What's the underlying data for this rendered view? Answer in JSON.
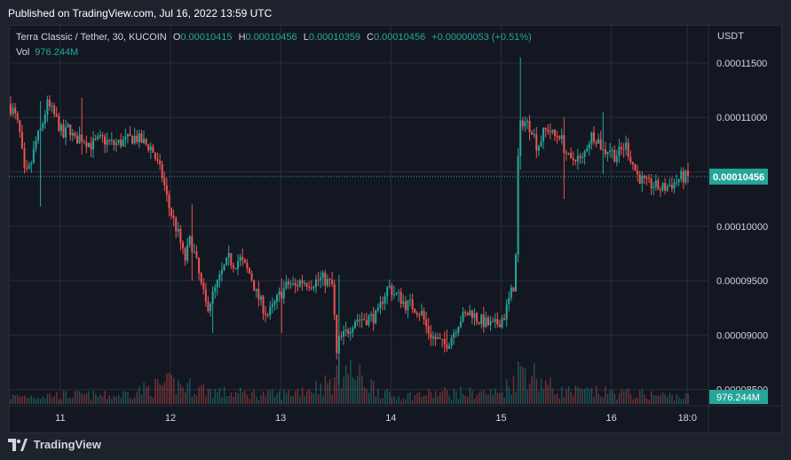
{
  "header": {
    "published": "Published on TradingView.com, Jul 16, 2022 13:59 UTC"
  },
  "legend": {
    "symbol": "Terra Classic / Tether, 30, KUCOIN",
    "o_label": "O",
    "o_value": "0.00010415",
    "h_label": "H",
    "h_value": "0.00010456",
    "l_label": "L",
    "l_value": "0.00010359",
    "c_label": "C",
    "c_value": "0.00010456",
    "change": "+0.00000053 (+0.51%)",
    "vol_label": "Vol",
    "vol_value": "976.244M"
  },
  "footer": {
    "brand": "TradingView"
  },
  "colors": {
    "up": "#26a69a",
    "down": "#ef5350",
    "background": "#131722",
    "grid": "#2a2e39",
    "text": "#d1d4dc"
  },
  "chart_data": {
    "type": "candlestick",
    "symbol": "Terra Classic / Tether",
    "interval": "30",
    "exchange": "KUCOIN",
    "currency": "USDT",
    "ylim": [
      8.35e-05,
      0.0001185
    ],
    "y_ticks": [
      "0.00011500",
      "0.00011000",
      "0.00010500",
      "0.00010000",
      "0.00009500",
      "0.00009000",
      "0.00008500"
    ],
    "x_ticks": [
      "11",
      "12",
      "13",
      "14",
      "15",
      "16",
      "18:0"
    ],
    "x_range_days": [
      10.55,
      16.72
    ],
    "last_price": "0.00010456",
    "last_volume": "976.244M",
    "price_path": [
      [
        10.55,
        0.0001112
      ],
      [
        10.6,
        0.0001105
      ],
      [
        10.65,
        0.0001088
      ],
      [
        10.7,
        0.0001045
      ],
      [
        10.75,
        0.0001055
      ],
      [
        10.8,
        0.0001078
      ],
      [
        10.85,
        0.000109
      ],
      [
        10.9,
        0.0001112
      ],
      [
        10.95,
        0.0001105
      ],
      [
        11.0,
        0.0001095
      ],
      [
        11.05,
        0.0001082
      ],
      [
        11.1,
        0.0001092
      ],
      [
        11.15,
        0.0001078
      ],
      [
        11.2,
        0.0001083
      ],
      [
        11.3,
        0.0001075
      ],
      [
        11.4,
        0.000108
      ],
      [
        11.5,
        0.0001075
      ],
      [
        11.6,
        0.0001078
      ],
      [
        11.7,
        0.0001082
      ],
      [
        11.8,
        0.0001075
      ],
      [
        11.85,
        0.0001072
      ],
      [
        11.9,
        0.0001058
      ],
      [
        11.95,
        0.0001045
      ],
      [
        12.0,
        0.000102
      ],
      [
        12.05,
        0.0001005
      ],
      [
        12.1,
        9.9e-05
      ],
      [
        12.15,
        9.68e-05
      ],
      [
        12.2,
        9.88e-05
      ],
      [
        12.25,
        9.7e-05
      ],
      [
        12.3,
        9.45e-05
      ],
      [
        12.35,
        9.25e-05
      ],
      [
        12.4,
        9.35e-05
      ],
      [
        12.45,
        9.48e-05
      ],
      [
        12.5,
        9.6e-05
      ],
      [
        12.55,
        9.7e-05
      ],
      [
        12.6,
        9.65e-05
      ],
      [
        12.65,
        9.7e-05
      ],
      [
        12.7,
        9.62e-05
      ],
      [
        12.75,
        9.55e-05
      ],
      [
        12.8,
        9.38e-05
      ],
      [
        12.85,
        9.28e-05
      ],
      [
        12.9,
        9.18e-05
      ],
      [
        12.95,
        9.25e-05
      ],
      [
        13.0,
        9.35e-05
      ],
      [
        13.05,
        9.42e-05
      ],
      [
        13.1,
        9.48e-05
      ],
      [
        13.15,
        9.44e-05
      ],
      [
        13.2,
        9.5e-05
      ],
      [
        13.3,
        9.48e-05
      ],
      [
        13.4,
        9.52e-05
      ],
      [
        13.5,
        9.45e-05
      ],
      [
        13.52,
        8.75e-05
      ],
      [
        13.55,
        8.95e-05
      ],
      [
        13.6,
        9e-05
      ],
      [
        13.7,
        9.15e-05
      ],
      [
        13.8,
        9.15e-05
      ],
      [
        13.9,
        9.18e-05
      ],
      [
        13.95,
        9.35e-05
      ],
      [
        14.0,
        9.45e-05
      ],
      [
        14.05,
        9.38e-05
      ],
      [
        14.1,
        9.35e-05
      ],
      [
        14.15,
        9.28e-05
      ],
      [
        14.2,
        9.28e-05
      ],
      [
        14.3,
        9.2e-05
      ],
      [
        14.35,
        9.05e-05
      ],
      [
        14.4,
        8.98e-05
      ],
      [
        14.45,
        8.95e-05
      ],
      [
        14.5,
        8.9e-05
      ],
      [
        14.55,
        8.95e-05
      ],
      [
        14.6,
        9.05e-05
      ],
      [
        14.65,
        9.15e-05
      ],
      [
        14.7,
        9.18e-05
      ],
      [
        14.75,
        9.22e-05
      ],
      [
        14.8,
        9.15e-05
      ],
      [
        14.9,
        9.1e-05
      ],
      [
        14.95,
        9.08e-05
      ],
      [
        15.0,
        9.12e-05
      ],
      [
        15.05,
        9.18e-05
      ],
      [
        15.1,
        9.35e-05
      ],
      [
        15.15,
        9.5e-05
      ],
      [
        15.17,
        0.0001055
      ],
      [
        15.2,
        0.0001098
      ],
      [
        15.25,
        0.0001095
      ],
      [
        15.3,
        0.000109
      ],
      [
        15.35,
        0.0001072
      ],
      [
        15.4,
        0.0001085
      ],
      [
        15.45,
        0.000109
      ],
      [
        15.5,
        0.0001082
      ],
      [
        15.55,
        0.0001085
      ],
      [
        15.6,
        0.000107
      ],
      [
        15.65,
        0.0001058
      ],
      [
        15.7,
        0.0001065
      ],
      [
        15.75,
        0.0001058
      ],
      [
        15.8,
        0.0001075
      ],
      [
        15.85,
        0.0001085
      ],
      [
        15.9,
        0.000108
      ],
      [
        15.95,
        0.0001068
      ],
      [
        16.0,
        0.0001072
      ],
      [
        16.05,
        0.0001065
      ],
      [
        16.1,
        0.0001068
      ],
      [
        16.15,
        0.0001075
      ],
      [
        16.2,
        0.0001062
      ],
      [
        16.25,
        0.0001048
      ],
      [
        16.3,
        0.0001042
      ],
      [
        16.35,
        0.0001038
      ],
      [
        16.4,
        0.0001038
      ],
      [
        16.45,
        0.0001035
      ],
      [
        16.5,
        0.0001035
      ],
      [
        16.55,
        0.0001038
      ],
      [
        16.6,
        0.000104
      ],
      [
        16.65,
        0.0001045
      ]
    ],
    "spikes": [
      [
        10.83,
        0.0001115,
        0.0001018
      ],
      [
        11.2,
        0.0001118,
        0.0001066
      ],
      [
        12.2,
        0.000102,
        9.5e-05
      ],
      [
        12.38,
        9.45e-05,
        9.02e-05
      ],
      [
        13.0,
        9.52e-05,
        9.02e-05
      ],
      [
        13.52,
        9.55e-05,
        8.55e-05
      ],
      [
        14.5,
        9.05e-05,
        8.85e-05
      ],
      [
        15.18,
        0.0001155,
        0.0001052
      ],
      [
        15.58,
        0.00011,
        0.0001025
      ],
      [
        15.92,
        0.0001105,
        0.0001048
      ]
    ],
    "volume_profile": [
      [
        10.55,
        0.2
      ],
      [
        11.0,
        0.25
      ],
      [
        11.5,
        0.22
      ],
      [
        12.0,
        0.55
      ],
      [
        12.3,
        0.4
      ],
      [
        12.5,
        0.3
      ],
      [
        13.0,
        0.25
      ],
      [
        13.5,
        0.6
      ],
      [
        13.55,
        1.0
      ],
      [
        14.0,
        0.2
      ],
      [
        14.5,
        0.3
      ],
      [
        15.0,
        0.3
      ],
      [
        15.2,
        1.0
      ],
      [
        15.5,
        0.35
      ],
      [
        16.0,
        0.3
      ],
      [
        16.65,
        0.2
      ]
    ]
  }
}
